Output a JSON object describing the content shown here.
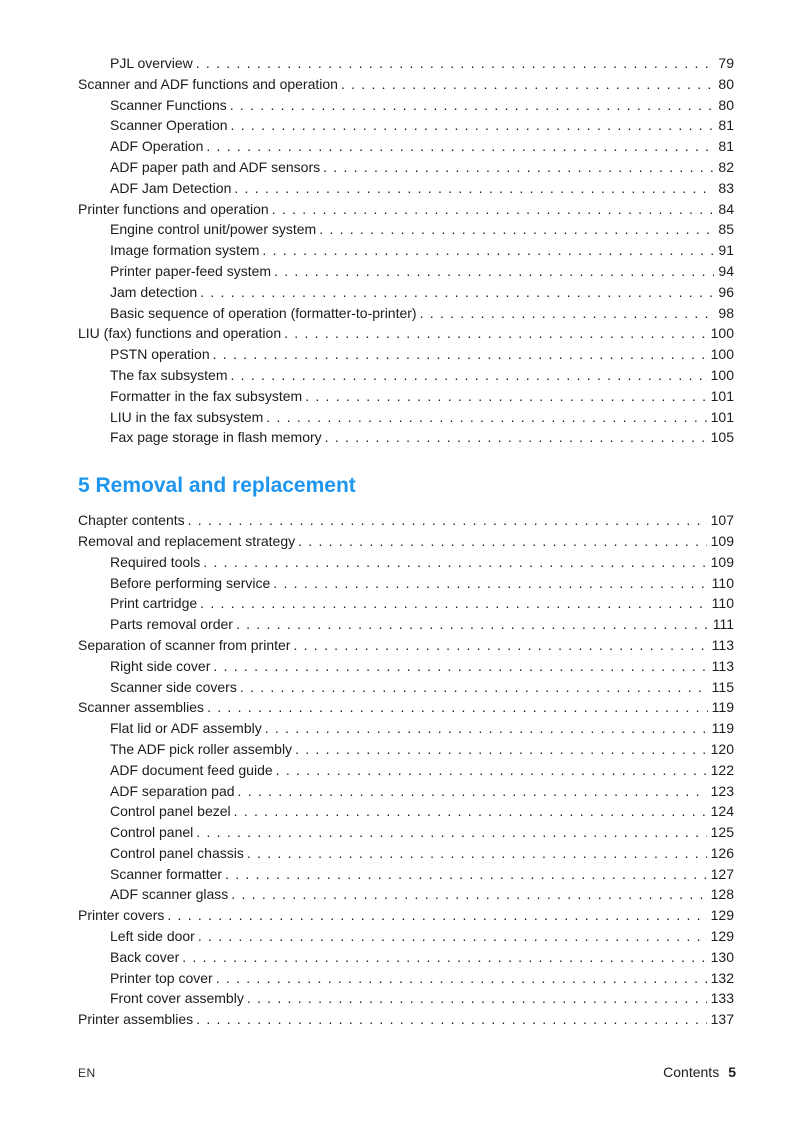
{
  "colors": {
    "heading_blue": "#1e96f0",
    "text": "#1c1c1c",
    "background": "#ffffff"
  },
  "toc": {
    "sections": [
      {
        "heading": "",
        "entries": [
          {
            "label": "PJL overview",
            "page": "79",
            "level": 2
          },
          {
            "label": "Scanner and ADF functions and operation",
            "page": "80",
            "level": 1
          },
          {
            "label": "Scanner Functions",
            "page": "80",
            "level": 2
          },
          {
            "label": "Scanner Operation",
            "page": "81",
            "level": 2
          },
          {
            "label": "ADF Operation",
            "page": "81",
            "level": 2
          },
          {
            "label": "ADF paper path and ADF sensors",
            "page": "82",
            "level": 2
          },
          {
            "label": "ADF Jam Detection",
            "page": "83",
            "level": 2
          },
          {
            "label": "Printer functions and operation",
            "page": "84",
            "level": 1
          },
          {
            "label": "Engine control unit/power system",
            "page": "85",
            "level": 2
          },
          {
            "label": "Image formation system",
            "page": "91",
            "level": 2
          },
          {
            "label": "Printer paper-feed system",
            "page": "94",
            "level": 2
          },
          {
            "label": "Jam detection",
            "page": "96",
            "level": 2
          },
          {
            "label": "Basic sequence of operation (formatter-to-printer)",
            "page": "98",
            "level": 2
          },
          {
            "label": "LIU (fax) functions and operation",
            "page": "100",
            "level": 1
          },
          {
            "label": "PSTN operation",
            "page": "100",
            "level": 2
          },
          {
            "label": "The fax subsystem",
            "page": "100",
            "level": 2
          },
          {
            "label": "Formatter in the fax subsystem",
            "page": "101",
            "level": 2
          },
          {
            "label": "LIU in the fax subsystem",
            "page": "101",
            "level": 2
          },
          {
            "label": "Fax page storage in flash memory",
            "page": "105",
            "level": 2
          }
        ]
      },
      {
        "heading": "5 Removal and replacement",
        "entries": [
          {
            "label": "Chapter contents",
            "page": "107",
            "level": 1
          },
          {
            "label": "Removal and replacement strategy",
            "page": "109",
            "level": 1
          },
          {
            "label": "Required tools",
            "page": "109",
            "level": 2
          },
          {
            "label": "Before performing service",
            "page": "110",
            "level": 2
          },
          {
            "label": "Print cartridge",
            "page": "110",
            "level": 2
          },
          {
            "label": "Parts removal order",
            "page": "111",
            "level": 2
          },
          {
            "label": "Separation of scanner from printer",
            "page": "113",
            "level": 1
          },
          {
            "label": "Right side cover",
            "page": "113",
            "level": 2
          },
          {
            "label": "Scanner side covers",
            "page": "115",
            "level": 2
          },
          {
            "label": "Scanner assemblies",
            "page": "119",
            "level": 1
          },
          {
            "label": "Flat lid or ADF assembly",
            "page": "119",
            "level": 2
          },
          {
            "label": "The ADF pick roller assembly",
            "page": "120",
            "level": 2
          },
          {
            "label": "ADF document feed guide",
            "page": "122",
            "level": 2
          },
          {
            "label": "ADF separation pad",
            "page": "123",
            "level": 2
          },
          {
            "label": "Control panel bezel",
            "page": "124",
            "level": 2
          },
          {
            "label": "Control panel",
            "page": "125",
            "level": 2
          },
          {
            "label": "Control panel chassis",
            "page": "126",
            "level": 2
          },
          {
            "label": "Scanner formatter",
            "page": "127",
            "level": 2
          },
          {
            "label": "ADF scanner glass",
            "page": "128",
            "level": 2
          },
          {
            "label": "Printer covers",
            "page": "129",
            "level": 1
          },
          {
            "label": "Left side door",
            "page": "129",
            "level": 2
          },
          {
            "label": "Back cover",
            "page": "130",
            "level": 2
          },
          {
            "label": "Printer top cover",
            "page": "132",
            "level": 2
          },
          {
            "label": "Front cover assembly",
            "page": "133",
            "level": 2
          },
          {
            "label": "Printer assemblies",
            "page": "137",
            "level": 1
          }
        ]
      }
    ]
  },
  "footer": {
    "language_code": "EN",
    "section_label": "Contents",
    "page_number": "5"
  }
}
